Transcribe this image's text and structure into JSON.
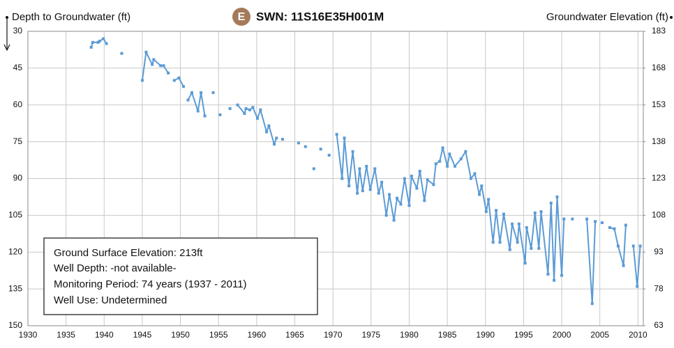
{
  "chart_data": {
    "type": "line",
    "title": "SWN: 11S16E35H001M",
    "badge": "E",
    "ylabel": "Depth to Groundwater (ft)",
    "y2label": "Groundwater Elevation (ft)",
    "info": [
      "Ground Surface Elevation: 213ft",
      "Well Depth: -not available-",
      "Monitoring Period: 74 years (1937 - 2011)",
      "Well Use: Undetermined"
    ],
    "xlim": [
      1930,
      2010.7
    ],
    "xticks": [
      1930,
      1935,
      1940,
      1945,
      1950,
      1955,
      1960,
      1965,
      1970,
      1975,
      1980,
      1985,
      1990,
      1995,
      2000,
      2005,
      2010
    ],
    "ylim": [
      150,
      30
    ],
    "yticks": [
      30,
      45,
      60,
      75,
      90,
      105,
      120,
      135,
      150
    ],
    "y2lim": [
      63,
      183
    ],
    "y2ticks": [
      183,
      168,
      153,
      138,
      123,
      108,
      93,
      78,
      63
    ],
    "grid": true,
    "series": [
      {
        "name": "Depth to Groundwater",
        "color": "#5b9bd5",
        "x": [
          1938.3,
          1938.5,
          1939.2,
          1939.4,
          1939.9,
          1940.3,
          null,
          1942.3,
          null,
          1945.0,
          1945.5,
          1946.3,
          1946.5,
          1947.4,
          1947.8,
          1948.4,
          null,
          1949.2,
          1949.8,
          1950.4,
          null,
          1951.0,
          1951.5,
          1952.3,
          1952.7,
          1953.2,
          null,
          1954.3,
          null,
          1955.2,
          null,
          1956.5,
          null,
          1957.5,
          1958.4,
          1958.6,
          1959.1,
          1959.5,
          1960.1,
          1960.5,
          1961.3,
          1961.6,
          1962.3,
          1962.6,
          null,
          1963.4,
          null,
          1965.5,
          null,
          1966.4,
          null,
          1967.5,
          null,
          1968.4,
          null,
          1969.5,
          null,
          1970.5,
          1971.2,
          1971.5,
          1972.1,
          1972.6,
          1973.2,
          1973.5,
          1973.9,
          1974.4,
          1974.9,
          1975.5,
          1976.0,
          1976.4,
          1977.0,
          1977.4,
          1978.0,
          1978.4,
          1978.9,
          1979.4,
          1980.0,
          1980.3,
          1981.0,
          1981.4,
          1982.0,
          1982.4,
          1983.2,
          1983.5,
          1984.0,
          1984.4,
          1985.0,
          1985.3,
          1986.0,
          1986.8,
          1987.4,
          1988.1,
          1988.6,
          1989.2,
          1989.5,
          1990.1,
          1990.4,
          1991.0,
          1991.4,
          1991.9,
          1992.4,
          1993.2,
          1993.5,
          1994.2,
          1994.4,
          1995.2,
          1995.4,
          1996.0,
          1996.5,
          1997.0,
          1997.3,
          1998.2,
          1998.6,
          1999.0,
          1999.4,
          2000.0,
          2000.3,
          null,
          2001.4,
          null,
          2003.3,
          2004.0,
          2004.4,
          null,
          2005.3,
          null,
          2006.3,
          2006.9,
          2007.4,
          2008.1,
          2008.4,
          null,
          2009.4,
          2009.9,
          2010.3
        ],
        "values": [
          36.5,
          34.5,
          34.5,
          34,
          33,
          35,
          null,
          39,
          null,
          50,
          38.5,
          43.5,
          41.5,
          44,
          44,
          47,
          null,
          50,
          49,
          52.5,
          null,
          58,
          55,
          62.5,
          55,
          64.5,
          null,
          55,
          null,
          64,
          null,
          61.5,
          null,
          60,
          63.5,
          61.5,
          62,
          61,
          65.5,
          62,
          71,
          68.5,
          76,
          73.5,
          null,
          74,
          null,
          75.5,
          null,
          77,
          null,
          86,
          null,
          78,
          null,
          80.5,
          null,
          72,
          90,
          73.5,
          93,
          79,
          96,
          86,
          95,
          85,
          94.5,
          86,
          96,
          91.5,
          105,
          96.5,
          107,
          98,
          100.5,
          90,
          101,
          89,
          94,
          87,
          99,
          90.5,
          92.5,
          84,
          83,
          77.5,
          85,
          80,
          85,
          82,
          79,
          90,
          88,
          96.5,
          93,
          103.5,
          98.5,
          116,
          103,
          116,
          104.5,
          119,
          108.5,
          116,
          108.5,
          124.5,
          110,
          118.5,
          104,
          118.5,
          103.5,
          129,
          100,
          131.5,
          97.5,
          129.5,
          106.5,
          null,
          106.5,
          null,
          106.5,
          141,
          107.5,
          null,
          108,
          null,
          110,
          110.5,
          117.5,
          125.5,
          109,
          null,
          117.5,
          134,
          117.5
        ]
      }
    ]
  }
}
